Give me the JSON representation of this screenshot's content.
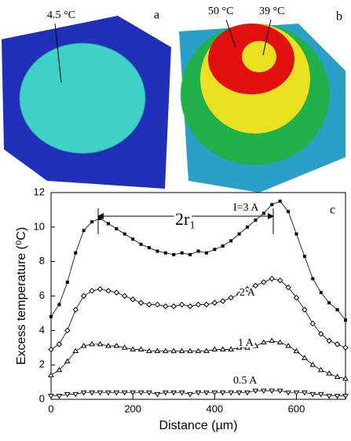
{
  "panels": {
    "a": {
      "label": "a",
      "annotation": "4.5 °C"
    },
    "b": {
      "label": "b",
      "annotations": [
        "50 °C",
        "39 °C"
      ]
    }
  },
  "chart_data": {
    "type": "line",
    "panel_label": "c",
    "xlabel": "Distance (µm)",
    "ylabel": "Excess temperature (⁰C)",
    "annotation": "2r₁",
    "x": [
      0,
      20,
      40,
      60,
      80,
      100,
      120,
      140,
      160,
      180,
      200,
      220,
      240,
      260,
      280,
      300,
      320,
      340,
      360,
      380,
      400,
      420,
      440,
      460,
      480,
      500,
      520,
      540,
      560,
      580,
      600,
      620,
      640,
      660,
      680,
      700,
      720
    ],
    "series": [
      {
        "name": "I=3 A",
        "color": "#000000",
        "marker": "square",
        "values": [
          4.8,
          5.5,
          6.8,
          8.5,
          9.8,
          10.3,
          10.5,
          10.2,
          9.9,
          9.6,
          9.3,
          9.0,
          8.8,
          8.6,
          8.5,
          8.4,
          8.5,
          8.4,
          8.6,
          8.5,
          8.7,
          8.9,
          9.2,
          9.6,
          10.0,
          10.4,
          10.8,
          11.3,
          11.5,
          10.9,
          9.6,
          8.3,
          7.0,
          6.2,
          5.6,
          5.2,
          4.6
        ]
      },
      {
        "name": "2 A",
        "color": "#000000",
        "marker": "diamond",
        "values": [
          2.9,
          3.2,
          4.0,
          5.2,
          6.0,
          6.3,
          6.4,
          6.3,
          6.2,
          6.0,
          5.8,
          5.6,
          5.5,
          5.5,
          5.4,
          5.4,
          5.5,
          5.4,
          5.5,
          5.5,
          5.6,
          5.7,
          5.9,
          6.1,
          6.4,
          6.6,
          6.8,
          7.0,
          6.9,
          6.5,
          5.9,
          5.2,
          4.4,
          3.8,
          3.4,
          3.2,
          3.0
        ]
      },
      {
        "name": "1 A",
        "color": "#000000",
        "marker": "triangle",
        "values": [
          1.4,
          1.7,
          2.2,
          2.8,
          3.1,
          3.2,
          3.2,
          3.1,
          3.1,
          3.0,
          2.9,
          2.9,
          2.8,
          2.8,
          2.8,
          2.8,
          2.8,
          2.8,
          2.8,
          2.8,
          2.9,
          2.9,
          2.9,
          3.0,
          3.0,
          3.1,
          3.3,
          3.4,
          3.3,
          3.1,
          2.8,
          2.4,
          2.0,
          1.7,
          1.5,
          1.3,
          1.2
        ]
      },
      {
        "name": "0.5 A",
        "color": "#000000",
        "marker": "triangle-down",
        "values": [
          0.2,
          0.2,
          0.3,
          0.3,
          0.4,
          0.4,
          0.4,
          0.4,
          0.4,
          0.4,
          0.4,
          0.4,
          0.4,
          0.3,
          0.4,
          0.4,
          0.4,
          0.3,
          0.4,
          0.4,
          0.4,
          0.4,
          0.4,
          0.4,
          0.4,
          0.5,
          0.5,
          0.5,
          0.5,
          0.4,
          0.4,
          0.4,
          0.3,
          0.3,
          0.2,
          0.2,
          0.2
        ]
      }
    ],
    "xlim": [
      0,
      720
    ],
    "ylim": [
      0,
      12
    ],
    "xticks": [
      0,
      200,
      400,
      600
    ],
    "yticks": [
      0,
      2,
      4,
      6,
      8,
      10,
      12
    ]
  }
}
